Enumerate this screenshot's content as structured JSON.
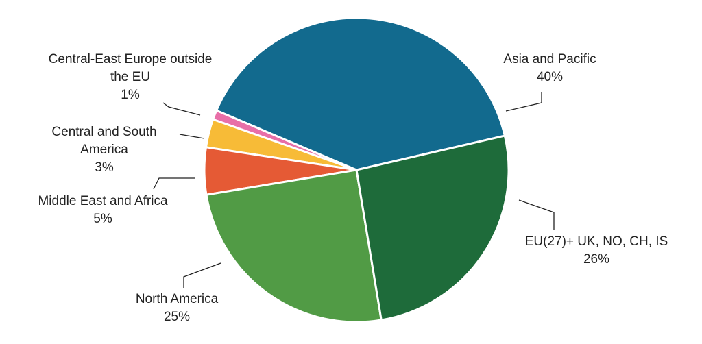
{
  "chart_data": {
    "type": "pie",
    "categories": [
      "EU(27)+ UK, NO, CH, IS",
      "North America",
      "Middle East and Africa",
      "Central and South America",
      "Central-East Europe outside the EU",
      "Asia and Pacific"
    ],
    "values": [
      26,
      25,
      5,
      3,
      1,
      40
    ],
    "value_labels": [
      "26%",
      "25%",
      "5%",
      "3%",
      "1%",
      "40%"
    ],
    "colors": [
      "#1e6b3a",
      "#519b45",
      "#e55a35",
      "#f7bb37",
      "#e86fa8",
      "#126a8e"
    ]
  }
}
